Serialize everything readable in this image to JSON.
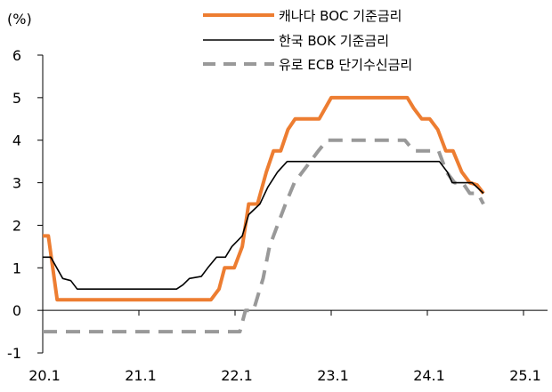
{
  "chart_data": {
    "type": "line",
    "ylabel": "(%)",
    "ylim": [
      -1,
      6
    ],
    "yticks": [
      "6",
      "5",
      "4",
      "3",
      "2",
      "1",
      "0",
      "-1"
    ],
    "xtick_labels": [
      "20.1",
      "21.1",
      "22.1",
      "23.1",
      "24.1",
      "25.1"
    ],
    "xlim": [
      0,
      63
    ],
    "legend_position": "top-center",
    "series": [
      {
        "name": "캐나다 BOC 기준금리",
        "color": "#ED7D31",
        "dash": "solid",
        "points": [
          [
            0,
            1.75
          ],
          [
            0.7,
            1.75
          ],
          [
            1.8,
            0.25
          ],
          [
            21,
            0.25
          ],
          [
            22,
            0.5
          ],
          [
            22.7,
            1.0
          ],
          [
            23.9,
            1.0
          ],
          [
            24.9,
            1.5
          ],
          [
            25.7,
            2.5
          ],
          [
            26.8,
            2.5
          ],
          [
            27.9,
            3.25
          ],
          [
            28.8,
            3.75
          ],
          [
            29.7,
            3.75
          ],
          [
            30.6,
            4.25
          ],
          [
            31.5,
            4.5
          ],
          [
            34.5,
            4.5
          ],
          [
            36,
            5.0
          ],
          [
            45.5,
            5.0
          ],
          [
            46.3,
            4.75
          ],
          [
            47.3,
            4.5
          ],
          [
            48.3,
            4.5
          ],
          [
            49.3,
            4.25
          ],
          [
            50.3,
            3.75
          ],
          [
            51.2,
            3.75
          ],
          [
            52.3,
            3.25
          ],
          [
            53.3,
            3.0
          ],
          [
            54.2,
            2.95
          ],
          [
            55,
            2.75
          ]
        ]
      },
      {
        "name": "한국 BOK 기준금리",
        "color": "#000000",
        "dash": "solid",
        "points": [
          [
            0,
            1.25
          ],
          [
            1,
            1.25
          ],
          [
            2.5,
            0.75
          ],
          [
            3.5,
            0.7
          ],
          [
            4.3,
            0.5
          ],
          [
            16.7,
            0.5
          ],
          [
            17.5,
            0.6
          ],
          [
            18.3,
            0.75
          ],
          [
            19.8,
            0.8
          ],
          [
            20.6,
            1.0
          ],
          [
            21.7,
            1.25
          ],
          [
            22.8,
            1.25
          ],
          [
            23.6,
            1.5
          ],
          [
            24.9,
            1.75
          ],
          [
            25.7,
            2.25
          ],
          [
            27.1,
            2.5
          ],
          [
            28.1,
            2.9
          ],
          [
            29.3,
            3.25
          ],
          [
            30.5,
            3.5
          ],
          [
            49.5,
            3.5
          ],
          [
            50.5,
            3.25
          ],
          [
            51.1,
            3.0
          ],
          [
            53.6,
            3.0
          ],
          [
            55,
            2.75
          ]
        ]
      },
      {
        "name": "유로 ECB 단기수신금리",
        "color": "#999999",
        "dash": "dashed",
        "points": [
          [
            0,
            -0.5
          ],
          [
            24.6,
            -0.5
          ],
          [
            25.3,
            0.0
          ],
          [
            26.3,
            0.0
          ],
          [
            27.5,
            0.75
          ],
          [
            28.3,
            1.5
          ],
          [
            29.3,
            2.0
          ],
          [
            30.3,
            2.5
          ],
          [
            31.4,
            3.0
          ],
          [
            32.4,
            3.25
          ],
          [
            33.4,
            3.5
          ],
          [
            34.4,
            3.75
          ],
          [
            35.5,
            4.0
          ],
          [
            45.2,
            4.0
          ],
          [
            46.3,
            3.75
          ],
          [
            49.4,
            3.75
          ],
          [
            50.4,
            3.25
          ],
          [
            51.4,
            3.0
          ],
          [
            52.4,
            3.0
          ],
          [
            53.3,
            2.75
          ],
          [
            54.3,
            2.75
          ],
          [
            55,
            2.5
          ]
        ]
      }
    ]
  }
}
